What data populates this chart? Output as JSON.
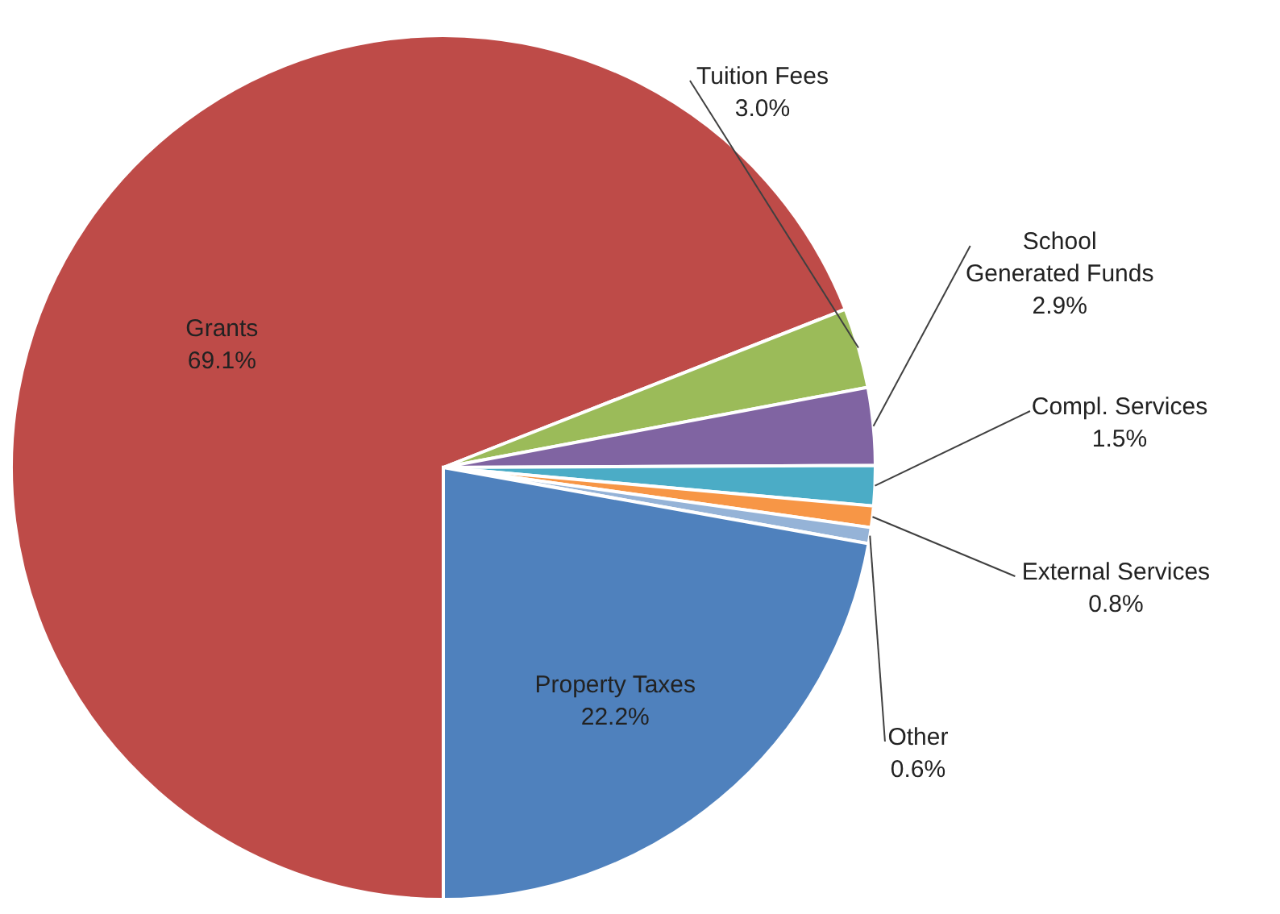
{
  "chart_data": {
    "type": "pie",
    "categories": [
      "Grants",
      "Tuition Fees",
      "School Generated Funds",
      "Compl. Services",
      "External Services",
      "Other",
      "Property Taxes"
    ],
    "values": [
      69.1,
      3.0,
      2.9,
      1.5,
      0.8,
      0.6,
      22.2
    ],
    "value_labels": [
      "69.1%",
      "3.0%",
      "2.9%",
      "1.5%",
      "0.8%",
      "0.6%",
      "22.2%"
    ],
    "colors": [
      "#be4b48",
      "#9bbb59",
      "#8064a2",
      "#4bacc6",
      "#f79646",
      "#95b3d7",
      "#4f81bd"
    ]
  }
}
